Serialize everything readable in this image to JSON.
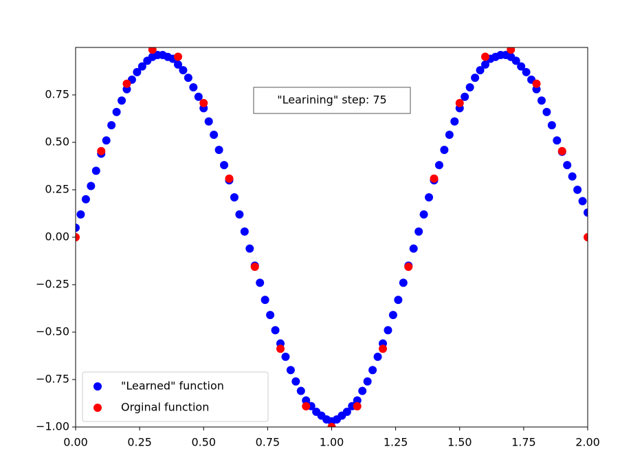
{
  "chart_data": {
    "type": "scatter",
    "annotation": "\"Learining\" step: 75",
    "xlim": [
      0,
      2
    ],
    "ylim": [
      -1,
      1
    ],
    "xticks": [
      {
        "value": 0,
        "label": "0.00"
      },
      {
        "value": 0.25,
        "label": "0.25"
      },
      {
        "value": 0.5,
        "label": "0.50"
      },
      {
        "value": 0.75,
        "label": "0.75"
      },
      {
        "value": 1,
        "label": "1.00"
      },
      {
        "value": 1.25,
        "label": "1.25"
      },
      {
        "value": 1.5,
        "label": "1.50"
      },
      {
        "value": 1.75,
        "label": "1.75"
      },
      {
        "value": 2,
        "label": "2.00"
      }
    ],
    "yticks": [
      {
        "value": -1,
        "label": "−1.00"
      },
      {
        "value": -0.75,
        "label": "−0.75"
      },
      {
        "value": -0.5,
        "label": "−0.50"
      },
      {
        "value": -0.25,
        "label": "−0.25"
      },
      {
        "value": 0,
        "label": "0.00"
      },
      {
        "value": 0.25,
        "label": "0.25"
      },
      {
        "value": 0.5,
        "label": "0.50"
      },
      {
        "value": 0.75,
        "label": "0.75"
      }
    ],
    "legend": "lower left",
    "series": [
      {
        "name": "\"Learned\" function",
        "color": "#0000ff",
        "x": [
          0,
          0.02,
          0.04,
          0.06,
          0.08,
          0.1,
          0.12,
          0.14,
          0.16,
          0.18,
          0.2,
          0.22,
          0.24,
          0.26,
          0.28,
          0.3,
          0.32,
          0.34,
          0.36,
          0.38,
          0.4,
          0.42,
          0.44,
          0.46,
          0.48,
          0.5,
          0.52,
          0.54,
          0.56,
          0.58,
          0.6,
          0.62,
          0.64,
          0.66,
          0.68,
          0.7,
          0.72,
          0.74,
          0.76,
          0.78,
          0.8,
          0.82,
          0.84,
          0.86,
          0.88,
          0.9,
          0.92,
          0.94,
          0.96,
          0.98,
          1,
          1.02,
          1.04,
          1.06,
          1.08,
          1.1,
          1.12,
          1.14,
          1.16,
          1.18,
          1.2,
          1.22,
          1.24,
          1.26,
          1.28,
          1.3,
          1.32,
          1.34,
          1.36,
          1.38,
          1.4,
          1.42,
          1.44,
          1.46,
          1.48,
          1.5,
          1.52,
          1.54,
          1.56,
          1.58,
          1.6,
          1.62,
          1.64,
          1.66,
          1.68,
          1.7,
          1.72,
          1.74,
          1.76,
          1.78,
          1.8,
          1.82,
          1.84,
          1.86,
          1.88,
          1.9,
          1.92,
          1.94,
          1.96,
          1.98,
          2
        ],
        "values": [
          0.05,
          0.12,
          0.2,
          0.27,
          0.35,
          0.44,
          0.51,
          0.59,
          0.66,
          0.72,
          0.78,
          0.83,
          0.87,
          0.9,
          0.93,
          0.95,
          0.96,
          0.96,
          0.95,
          0.94,
          0.91,
          0.88,
          0.84,
          0.79,
          0.74,
          0.68,
          0.61,
          0.54,
          0.46,
          0.38,
          0.3,
          0.21,
          0.12,
          0.03,
          -0.06,
          -0.15,
          -0.24,
          -0.33,
          -0.41,
          -0.49,
          -0.56,
          -0.63,
          -0.7,
          -0.76,
          -0.81,
          -0.86,
          -0.89,
          -0.92,
          -0.94,
          -0.96,
          -0.97,
          -0.96,
          -0.94,
          -0.92,
          -0.89,
          -0.86,
          -0.81,
          -0.76,
          -0.7,
          -0.63,
          -0.56,
          -0.49,
          -0.41,
          -0.33,
          -0.24,
          -0.15,
          -0.06,
          0.03,
          0.12,
          0.21,
          0.3,
          0.38,
          0.46,
          0.54,
          0.61,
          0.68,
          0.74,
          0.79,
          0.84,
          0.88,
          0.91,
          0.94,
          0.95,
          0.96,
          0.96,
          0.95,
          0.93,
          0.9,
          0.87,
          0.83,
          0.78,
          0.72,
          0.66,
          0.59,
          0.51,
          0.45,
          0.38,
          0.32,
          0.25,
          0.19,
          0.13
        ]
      },
      {
        "name": "Orginal function",
        "color": "#ff0000",
        "x": [
          0,
          0.1,
          0.2,
          0.3,
          0.4,
          0.5,
          0.6,
          0.7,
          0.8,
          0.9,
          1,
          1.1,
          1.2,
          1.3,
          1.4,
          1.5,
          1.6,
          1.7,
          1.8,
          1.9,
          2
        ],
        "values": [
          0,
          0.454,
          0.809,
          0.988,
          0.951,
          0.707,
          0.309,
          -0.156,
          -0.588,
          -0.891,
          -1,
          -0.891,
          -0.588,
          -0.156,
          0.309,
          0.707,
          0.951,
          0.988,
          0.809,
          0.454,
          0
        ]
      }
    ]
  }
}
